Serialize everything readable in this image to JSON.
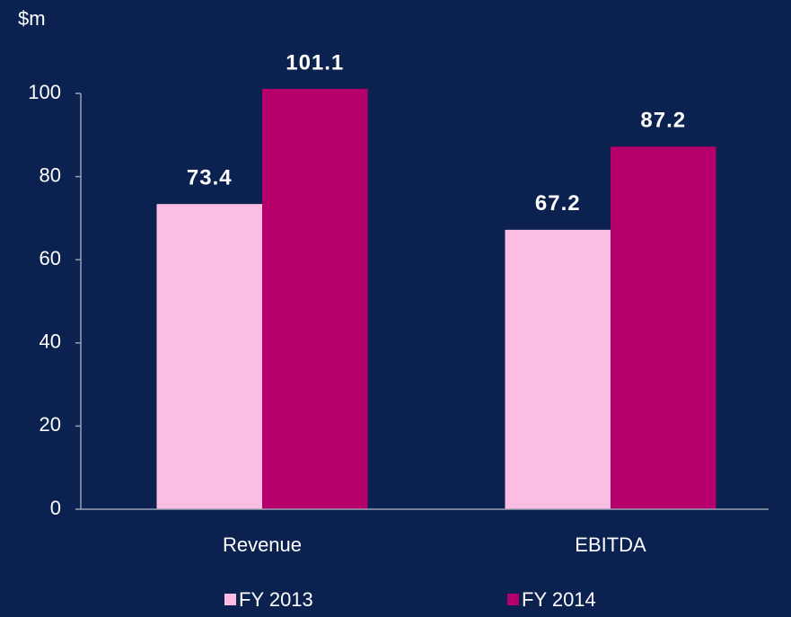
{
  "chart_data": {
    "type": "bar",
    "y_axis_label": "$m",
    "categories": [
      "Revenue",
      "EBITDA"
    ],
    "series": [
      {
        "name": "FY 2013",
        "color": "#fcbde3",
        "values": [
          73.4,
          67.2
        ]
      },
      {
        "name": "FY 2014",
        "color": "#b5006b",
        "values": [
          101.1,
          87.2
        ]
      }
    ],
    "ylim": [
      0,
      100
    ],
    "yticks": [
      0,
      20,
      40,
      60,
      80,
      100
    ],
    "legend": "bottom"
  }
}
